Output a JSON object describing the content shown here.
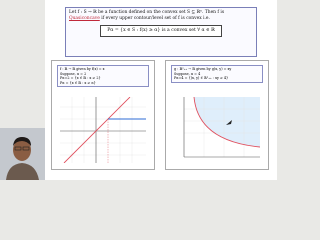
{
  "slide": {
    "definition": {
      "before": "Let f : S → ℝ be a function defined on the convex set S ⊆ ℝⁿ. Then f is",
      "term": "Quasiconcave",
      "after": "if every upper contour/level set of f is convex i.e.",
      "formula": "Pα = {x ∈ S : f(x) ≥ α} is a convex set ∀ α ∈ ℝ"
    },
    "left_panel": {
      "lines": [
        "f : ℝ → ℝ given by f(x) = x",
        "Suppose, α = 2",
        "Pα=2 = {x ∈ ℝ : x ≥ 2}",
        "Pα = {x ∈ ℝ : x ≥ α}"
      ]
    },
    "right_panel": {
      "lines": [
        "g : ℝ²₊₊ → ℝ given by g(x, y) = xy",
        "Suppose, α = 4",
        "Pα=4 = {(x, y) ∈ ℝ²₊₊ : xy ≥ 4}"
      ]
    }
  }
}
